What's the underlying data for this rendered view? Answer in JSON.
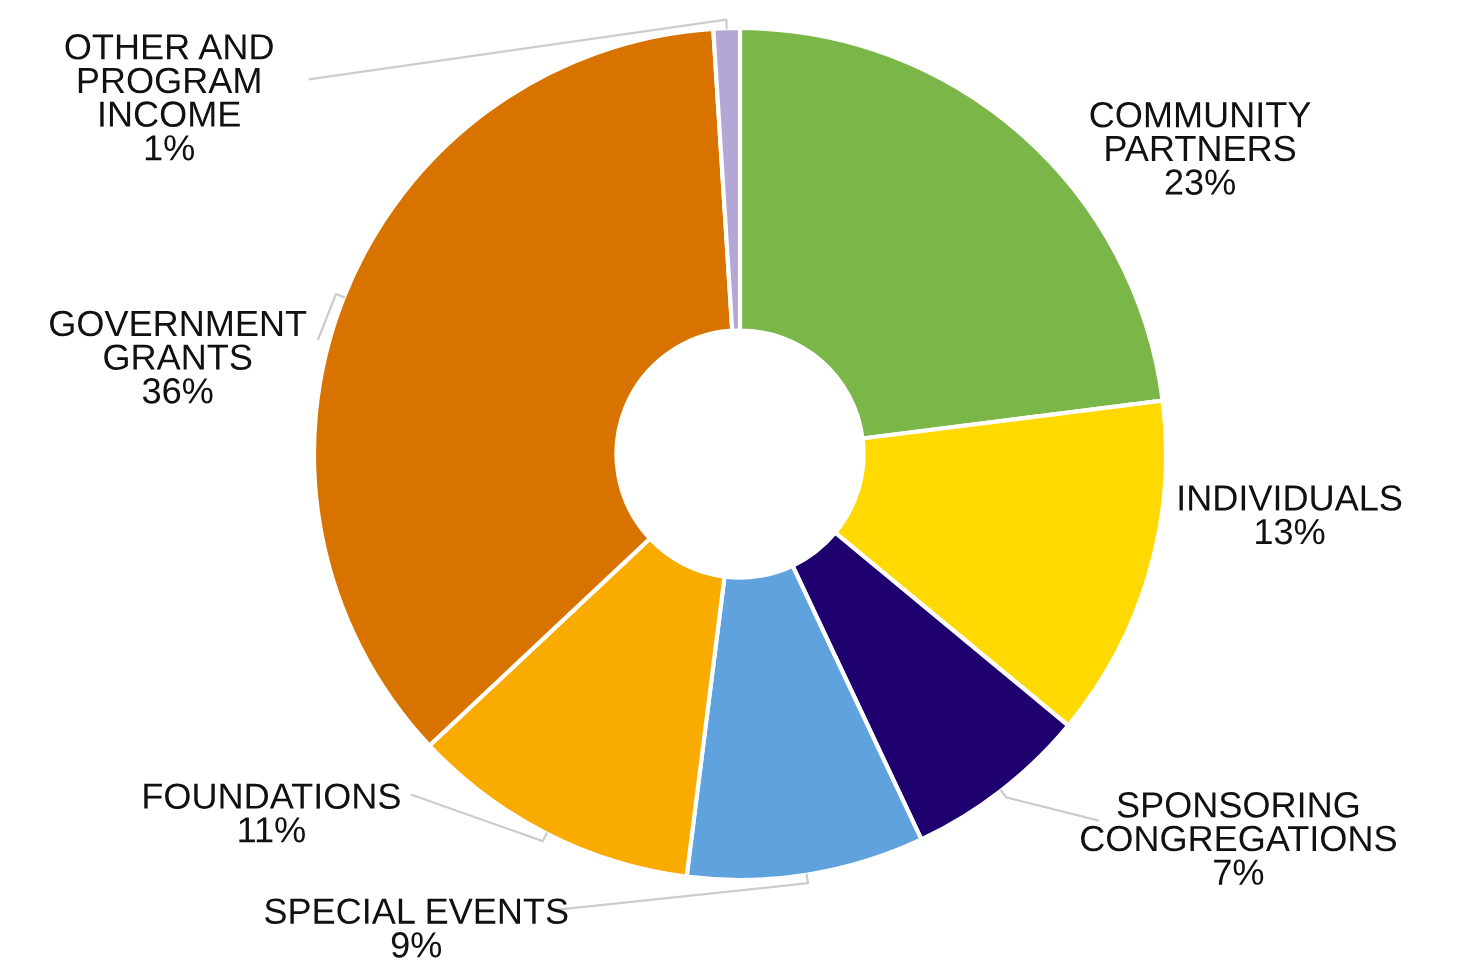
{
  "chart_data": {
    "type": "donut",
    "categories": [
      "COMMUNITY\nPARTNERS",
      "INDIVIDUALS",
      "SPONSORING\nCONGREGATIONS",
      "SPECIAL EVENTS",
      "FOUNDATIONS",
      "GOVERNMENT\nGRANTS",
      "OTHER AND\nPROGRAM\nINCOME"
    ],
    "values": [
      23,
      13,
      7,
      9,
      11,
      36,
      1
    ],
    "value_labels": [
      "23%",
      "13%",
      "7%",
      "9%",
      "11%",
      "36%",
      "1%"
    ],
    "colors": [
      "#7ab648",
      "#ffd900",
      "#1e006e",
      "#5fa2dd",
      "#f9ab00",
      "#d97300",
      "#b4a7d6"
    ]
  }
}
